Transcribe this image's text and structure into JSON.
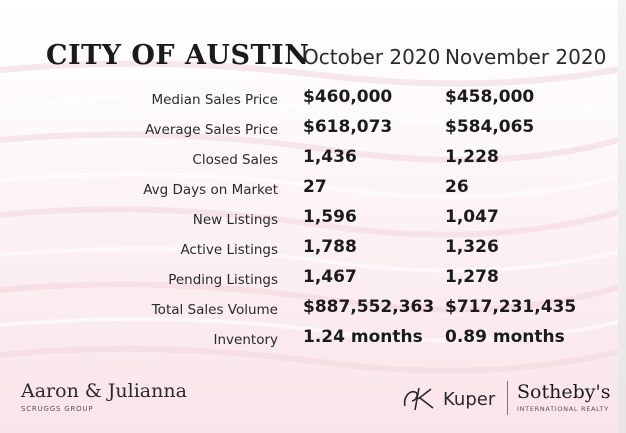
{
  "title": "CITY OF AUSTIN",
  "columns": [
    "October 2020",
    "November 2020"
  ],
  "rows": [
    {
      "label": "Median Sales Price",
      "oct": "$460,000",
      "nov": "$458,000"
    },
    {
      "label": "Average Sales Price",
      "oct": "$618,073",
      "nov": "$584,065"
    },
    {
      "label": "Closed Sales",
      "oct": "1,436",
      "nov": "1,228"
    },
    {
      "label": "Avg Days on Market",
      "oct": "27",
      "nov": "26"
    },
    {
      "label": "New Listings",
      "oct": "1,596",
      "nov": "1,047"
    },
    {
      "label": "Active Listings",
      "oct": "1,788",
      "nov": "1,326"
    },
    {
      "label": "Pending Listings",
      "oct": "1,467",
      "nov": "1,278"
    },
    {
      "label": "Total Sales Volume",
      "oct": "$887,552,363",
      "nov": "$717,231,435"
    },
    {
      "label": "Inventory",
      "oct": "1.24 months",
      "nov": "0.89 months"
    }
  ],
  "branding": {
    "left_name": "Aaron & Julianna",
    "left_sub": "SCRUGGS GROUP",
    "kuper_name": "Kuper",
    "sothebys_name": "Sotheby's",
    "sothebys_sub": "INTERNATIONAL REALTY"
  },
  "colors": {
    "background_top": "#ffffff",
    "background_bottom": "#f9e4ea",
    "text": "#1b1b1b"
  },
  "icons": [
    "kuper-monogram-icon"
  ]
}
